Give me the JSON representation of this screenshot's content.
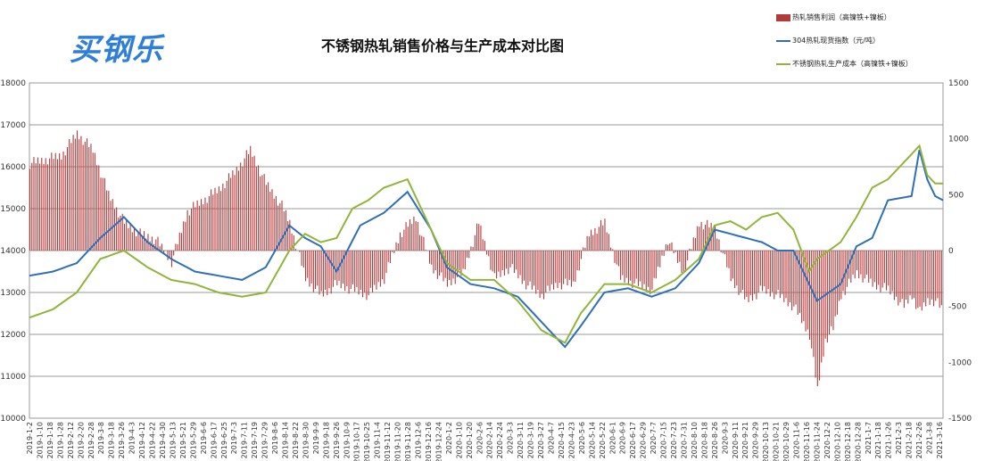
{
  "logo": {
    "text": "买钢乐"
  },
  "chart_data": {
    "type": "bar+line",
    "title": "不锈钢热轧销售价格与生产成本对比图",
    "legend": [
      {
        "name": "热轧销售利润（高镍铁+镍板）",
        "color": "#b33a3a",
        "kind": "bar"
      },
      {
        "name": "304热轧现货指数（元/吨）",
        "color": "#2e6fb9",
        "kind": "line"
      },
      {
        "name": "不锈钢热轧生产成本（高镍铁+镍板）",
        "color": "#8fb63a",
        "kind": "line"
      }
    ],
    "legend_position": "top-right",
    "grid": true,
    "y_left": {
      "min": 10000,
      "max": 18000,
      "ticks": [
        "10000",
        "11000",
        "12000",
        "13000",
        "14000",
        "15000",
        "16000",
        "17000",
        "18000"
      ]
    },
    "y_right": {
      "min": -1500,
      "max": 1500,
      "ticks": [
        "-1500",
        "-1000",
        "-500",
        "0",
        "500",
        "1000",
        "1500"
      ]
    },
    "x_tick_labels": [
      "2019-1-2",
      "2019-1-10",
      "2019-1-18",
      "2019-1-28",
      "2019-2-12",
      "2019-2-20",
      "2019-2-28",
      "2019-3-8",
      "2019-3-18",
      "2019-3-26",
      "2019-4-3",
      "2019-4-12",
      "2019-4-22",
      "2019-4-30",
      "2019-5-13",
      "2019-5-21",
      "2019-5-29",
      "2019-6-6",
      "2019-6-17",
      "2019-6-25",
      "2019-7-3",
      "2019-7-11",
      "2019-7-19",
      "2019-7-29",
      "2019-8-6",
      "2019-8-14",
      "2019-8-22",
      "2019-8-30",
      "2019-9-9",
      "2019-9-18",
      "2019-9-26",
      "2019-10-9",
      "2019-10-17",
      "2019-10-25",
      "2019-11-4",
      "2019-11-12",
      "2019-11-20",
      "2019-11-28",
      "2019-12-6",
      "2019-12-16",
      "2019-12-24",
      "2020-1-2",
      "2020-1-10",
      "2020-1-20",
      "2020-2-6",
      "2020-2-14",
      "2020-2-24",
      "2020-3-3",
      "2020-3-11",
      "2020-3-19",
      "2020-3-27",
      "2020-4-7",
      "2020-4-15",
      "2020-4-23",
      "2020-5-6",
      "2020-5-14",
      "2020-5-22",
      "2020-6-1",
      "2020-6-9",
      "2020-6-17",
      "2020-6-29",
      "2020-7-7",
      "2020-7-15",
      "2020-7-23",
      "2020-7-31",
      "2020-8-10",
      "2020-8-18",
      "2020-8-26",
      "2020-9-3",
      "2020-9-11",
      "2020-9-21",
      "2020-9-29",
      "2020-10-13",
      "2020-10-21",
      "2020-10-29",
      "2020-11-6",
      "2020-11-16",
      "2020-11-24",
      "2020-12-2",
      "2020-12-10",
      "2020-12-18",
      "2020-12-28",
      "2021-1-7",
      "2021-1-18",
      "2021-1-26",
      "2021-2-3",
      "2021-2-18",
      "2021-2-26",
      "2021-3-8",
      "2021-3-16"
    ],
    "series": [
      {
        "name": "304热轧现货指数（元/吨）",
        "axis": "left",
        "anchors": [
          [
            0,
            13400
          ],
          [
            3,
            13500
          ],
          [
            6,
            13700
          ],
          [
            9,
            14300
          ],
          [
            12,
            14800
          ],
          [
            15,
            14200
          ],
          [
            18,
            13800
          ],
          [
            21,
            13500
          ],
          [
            24,
            13400
          ],
          [
            27,
            13300
          ],
          [
            30,
            13600
          ],
          [
            33,
            14600
          ],
          [
            35,
            14300
          ],
          [
            37,
            14100
          ],
          [
            39,
            13500
          ],
          [
            42,
            14600
          ],
          [
            45,
            14900
          ],
          [
            48,
            15400
          ],
          [
            51,
            14500
          ],
          [
            53,
            13600
          ],
          [
            56,
            13200
          ],
          [
            59,
            13100
          ],
          [
            62,
            12900
          ],
          [
            65,
            12300
          ],
          [
            68,
            11700
          ],
          [
            70,
            12200
          ],
          [
            73,
            13000
          ],
          [
            76,
            13100
          ],
          [
            79,
            12900
          ],
          [
            82,
            13100
          ],
          [
            85,
            13700
          ],
          [
            87,
            14500
          ],
          [
            89,
            14400
          ],
          [
            91,
            14300
          ],
          [
            93,
            14200
          ],
          [
            95,
            14000
          ],
          [
            97,
            14000
          ],
          [
            99,
            13200
          ],
          [
            100,
            12800
          ],
          [
            103,
            13200
          ],
          [
            105,
            14100
          ],
          [
            107,
            14300
          ],
          [
            109,
            15200
          ],
          [
            112,
            15300
          ],
          [
            113,
            16400
          ],
          [
            114,
            15700
          ],
          [
            115,
            15300
          ],
          [
            116,
            15200
          ]
        ]
      },
      {
        "name": "不锈钢热轧生产成本（高镍铁+镍板）",
        "axis": "left",
        "anchors": [
          [
            0,
            12400
          ],
          [
            3,
            12600
          ],
          [
            6,
            13000
          ],
          [
            9,
            13800
          ],
          [
            12,
            14000
          ],
          [
            15,
            13600
          ],
          [
            18,
            13300
          ],
          [
            21,
            13200
          ],
          [
            24,
            13000
          ],
          [
            27,
            12900
          ],
          [
            30,
            13000
          ],
          [
            33,
            14000
          ],
          [
            35,
            14400
          ],
          [
            37,
            14200
          ],
          [
            39,
            14300
          ],
          [
            41,
            15000
          ],
          [
            43,
            15200
          ],
          [
            45,
            15500
          ],
          [
            48,
            15700
          ],
          [
            51,
            14500
          ],
          [
            53,
            13700
          ],
          [
            56,
            13300
          ],
          [
            59,
            13300
          ],
          [
            62,
            12800
          ],
          [
            65,
            12100
          ],
          [
            68,
            11800
          ],
          [
            70,
            12500
          ],
          [
            73,
            13200
          ],
          [
            76,
            13200
          ],
          [
            79,
            13000
          ],
          [
            82,
            13300
          ],
          [
            85,
            13800
          ],
          [
            87,
            14600
          ],
          [
            89,
            14700
          ],
          [
            91,
            14500
          ],
          [
            93,
            14800
          ],
          [
            95,
            14900
          ],
          [
            97,
            14500
          ],
          [
            99,
            13500
          ],
          [
            100,
            13800
          ],
          [
            103,
            14200
          ],
          [
            105,
            14800
          ],
          [
            107,
            15500
          ],
          [
            109,
            15700
          ],
          [
            112,
            16300
          ],
          [
            113,
            16500
          ],
          [
            114,
            15800
          ],
          [
            115,
            15600
          ],
          [
            116,
            15600
          ]
        ]
      },
      {
        "name": "热轧销售利润（高镍铁+镍板）",
        "axis": "right",
        "kind": "bar",
        "anchors": [
          [
            0,
            780
          ],
          [
            4,
            850
          ],
          [
            6,
            1050
          ],
          [
            8,
            900
          ],
          [
            10,
            500
          ],
          [
            12,
            250
          ],
          [
            14,
            150
          ],
          [
            16,
            100
          ],
          [
            18,
            -100
          ],
          [
            20,
            350
          ],
          [
            22,
            450
          ],
          [
            24,
            550
          ],
          [
            26,
            700
          ],
          [
            28,
            900
          ],
          [
            30,
            600
          ],
          [
            31,
            500
          ],
          [
            32,
            400
          ],
          [
            33,
            250
          ],
          [
            35,
            -250
          ],
          [
            37,
            -400
          ],
          [
            39,
            -300
          ],
          [
            41,
            -350
          ],
          [
            43,
            -400
          ],
          [
            45,
            -250
          ],
          [
            47,
            150
          ],
          [
            49,
            300
          ],
          [
            51,
            -150
          ],
          [
            53,
            -300
          ],
          [
            55,
            -200
          ],
          [
            57,
            250
          ],
          [
            59,
            -250
          ],
          [
            61,
            -150
          ],
          [
            63,
            -300
          ],
          [
            65,
            -400
          ],
          [
            67,
            -300
          ],
          [
            69,
            -300
          ],
          [
            71,
            150
          ],
          [
            73,
            250
          ],
          [
            75,
            -250
          ],
          [
            77,
            -300
          ],
          [
            79,
            -350
          ],
          [
            81,
            100
          ],
          [
            83,
            -200
          ],
          [
            85,
            250
          ],
          [
            87,
            200
          ],
          [
            89,
            -250
          ],
          [
            91,
            -450
          ],
          [
            93,
            -350
          ],
          [
            95,
            -400
          ],
          [
            97,
            -500
          ],
          [
            99,
            -750
          ],
          [
            100,
            -1250
          ],
          [
            101,
            -800
          ],
          [
            102,
            -700
          ],
          [
            103,
            -400
          ],
          [
            105,
            -200
          ],
          [
            107,
            -300
          ],
          [
            109,
            -350
          ],
          [
            111,
            -500
          ],
          [
            112,
            -400
          ],
          [
            113,
            -550
          ],
          [
            114,
            -450
          ],
          [
            115,
            -450
          ],
          [
            116,
            -550
          ]
        ]
      }
    ]
  }
}
